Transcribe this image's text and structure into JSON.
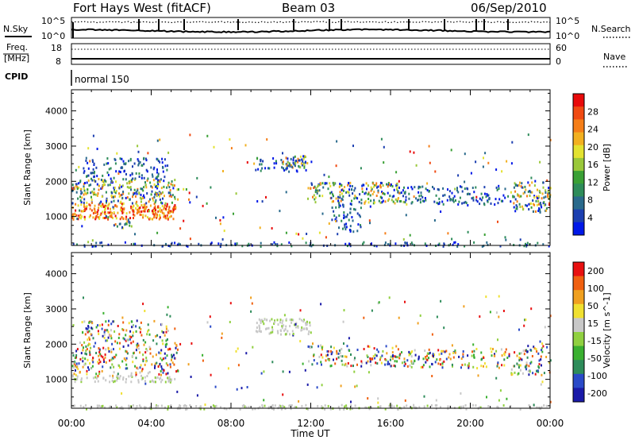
{
  "header": {
    "station": "Fort Hays West (fitACF)",
    "beam": "Beam 03",
    "date": "06/Sep/2010"
  },
  "noise_panel": {
    "left_label": "N.Sky",
    "right_label": "N.Search",
    "tick_top": "10^5",
    "tick_bottom": "10^0"
  },
  "freq_panel": {
    "left_label_line1": "Freq.",
    "left_label_line2": "[MHz]",
    "left_ticks": [
      "18",
      "8"
    ],
    "right_label": "Nave",
    "right_ticks": [
      "60",
      "0"
    ]
  },
  "cpid": {
    "label": "CPID",
    "value": "normal 150"
  },
  "x_axis": {
    "label": "Time UT",
    "ticks": [
      "00:00",
      "04:00",
      "08:00",
      "12:00",
      "16:00",
      "20:00",
      "00:00"
    ]
  },
  "chart_data": [
    {
      "type": "heatmap",
      "name": "power",
      "ylabel": "Slant Range [km]",
      "ylim": [
        180,
        4600
      ],
      "yticks": [
        1000,
        2000,
        3000,
        4000
      ],
      "xlim": [
        0,
        24
      ],
      "colorbar": {
        "label": "Power [dB]",
        "ticks": [
          4,
          8,
          12,
          16,
          20,
          24,
          28
        ],
        "range": [
          0,
          32
        ],
        "colors": [
          "#0018e8",
          "#1c3fb0",
          "#2a6a8c",
          "#2e8c5a",
          "#3aa035",
          "#9ac83a",
          "#e3e230",
          "#f2b020",
          "#f57e18",
          "#f04a12",
          "#e80a0a"
        ]
      },
      "regions": [
        {
          "t0": 0.0,
          "t1": 5.2,
          "r0": 950,
          "r1": 1400,
          "level": "high"
        },
        {
          "t0": 0.0,
          "t1": 5.3,
          "r0": 1400,
          "r1": 2100,
          "level": "mid"
        },
        {
          "t0": 0.5,
          "t1": 4.8,
          "r0": 2100,
          "r1": 2700,
          "level": "low"
        },
        {
          "t0": 2.0,
          "t1": 3.0,
          "r0": 700,
          "r1": 950,
          "level": "mid"
        },
        {
          "t0": 9.2,
          "t1": 12.0,
          "r0": 2300,
          "r1": 2700,
          "level": "low"
        },
        {
          "t0": 10.5,
          "t1": 12.0,
          "r0": 2400,
          "r1": 2750,
          "level": "mid"
        },
        {
          "t0": 11.8,
          "t1": 16.5,
          "r0": 1400,
          "r1": 2000,
          "level": "mid"
        },
        {
          "t0": 13.0,
          "t1": 14.5,
          "r0": 600,
          "r1": 1400,
          "level": "low"
        },
        {
          "t0": 16.5,
          "t1": 22.0,
          "r0": 1350,
          "r1": 1900,
          "level": "low"
        },
        {
          "t0": 22.0,
          "t1": 24.0,
          "r0": 1150,
          "r1": 2000,
          "level": "mid"
        },
        {
          "t0": 0.0,
          "t1": 24.0,
          "r0": 180,
          "r1": 300,
          "level": "low"
        }
      ]
    },
    {
      "type": "heatmap",
      "name": "velocity",
      "ylabel": "Slant Range [km]",
      "ylim": [
        180,
        4600
      ],
      "yticks": [
        1000,
        2000,
        3000,
        4000
      ],
      "xlim": [
        0,
        24
      ],
      "colorbar": {
        "label": "Velocity [m s^-1]",
        "ticks": [
          200,
          100,
          50,
          15,
          -15,
          -50,
          -100,
          -200
        ],
        "colors": [
          "#1a1aa8",
          "#2a4ac8",
          "#2e8c5a",
          "#3ab030",
          "#90d040",
          "#c8c8c8",
          "#f0e030",
          "#f0a020",
          "#f06010",
          "#e81010"
        ]
      },
      "regions": [
        {
          "t0": 0.0,
          "t1": 5.2,
          "r0": 950,
          "r1": 1150,
          "level": "ground"
        },
        {
          "t0": 0.0,
          "t1": 5.3,
          "r0": 1150,
          "r1": 2100,
          "level": "mixed"
        },
        {
          "t0": 0.5,
          "t1": 4.8,
          "r0": 2100,
          "r1": 2700,
          "level": "mixed"
        },
        {
          "t0": 9.2,
          "t1": 12.0,
          "r0": 2300,
          "r1": 2750,
          "level": "ground"
        },
        {
          "t0": 11.8,
          "t1": 16.5,
          "r0": 1400,
          "r1": 2000,
          "level": "mixed"
        },
        {
          "t0": 16.5,
          "t1": 22.0,
          "r0": 1350,
          "r1": 1900,
          "level": "mixed"
        },
        {
          "t0": 22.0,
          "t1": 24.0,
          "r0": 1150,
          "r1": 2000,
          "level": "mixed"
        },
        {
          "t0": 0.0,
          "t1": 24.0,
          "r0": 180,
          "r1": 300,
          "level": "ground"
        }
      ]
    }
  ]
}
